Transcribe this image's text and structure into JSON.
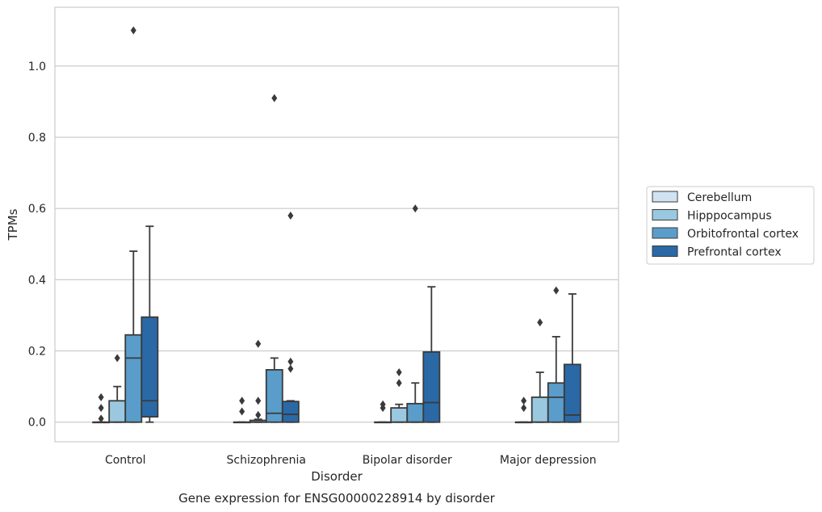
{
  "chart_data": {
    "type": "box",
    "title": "",
    "caption": "Gene expression for ENSG00000228914 by disorder",
    "xlabel": "Disorder",
    "ylabel": "TPMs",
    "ylim": [
      -0.055,
      1.165
    ],
    "yticks": [
      0.0,
      0.2,
      0.4,
      0.6,
      0.8,
      1.0
    ],
    "ytick_labels": [
      "0.0",
      "0.2",
      "0.4",
      "0.6",
      "0.8",
      "1.0"
    ],
    "grid": "horizontal",
    "legend_position": "right",
    "categories": [
      "Control",
      "Schizophrenia",
      "Bipolar disorder",
      "Major depression"
    ],
    "series": [
      {
        "name": "Cerebellum",
        "color": "#d1e2f2",
        "boxes": [
          {
            "q1": 0,
            "median": 0,
            "q3": 0,
            "whisker_low": 0,
            "whisker_high": 0,
            "outliers": [
              0.07,
              0.04,
              0.01
            ]
          },
          {
            "q1": 0,
            "median": 0,
            "q3": 0,
            "whisker_low": 0,
            "whisker_high": 0,
            "outliers": [
              0.06,
              0.03
            ]
          },
          {
            "q1": 0,
            "median": 0,
            "q3": 0,
            "whisker_low": 0,
            "whisker_high": 0,
            "outliers": [
              0.05,
              0.04
            ]
          },
          {
            "q1": 0,
            "median": 0,
            "q3": 0,
            "whisker_low": 0,
            "whisker_high": 0,
            "outliers": [
              0.06,
              0.04
            ]
          }
        ]
      },
      {
        "name": "Hipppocampus",
        "color": "#9ac8e0",
        "boxes": [
          {
            "q1": 0,
            "median": 0,
            "q3": 0.06,
            "whisker_low": 0,
            "whisker_high": 0.1,
            "outliers": [
              0.18
            ]
          },
          {
            "q1": 0,
            "median": 0,
            "q3": 0.005,
            "whisker_low": 0,
            "whisker_high": 0.008,
            "outliers": [
              0.06,
              0.02,
              0.22
            ]
          },
          {
            "q1": 0,
            "median": 0,
            "q3": 0.04,
            "whisker_low": 0,
            "whisker_high": 0.05,
            "outliers": [
              0.14,
              0.11
            ]
          },
          {
            "q1": 0,
            "median": 0,
            "q3": 0.07,
            "whisker_low": 0,
            "whisker_high": 0.14,
            "outliers": [
              0.28
            ]
          }
        ]
      },
      {
        "name": "Orbitofrontal cortex",
        "color": "#5a9dca",
        "boxes": [
          {
            "q1": 0,
            "median": 0.18,
            "q3": 0.245,
            "whisker_low": 0,
            "whisker_high": 0.48,
            "outliers": [
              1.1
            ]
          },
          {
            "q1": 0,
            "median": 0.025,
            "q3": 0.147,
            "whisker_low": 0,
            "whisker_high": 0.18,
            "outliers": [
              0.91
            ]
          },
          {
            "q1": 0,
            "median": 0,
            "q3": 0.052,
            "whisker_low": 0,
            "whisker_high": 0.11,
            "outliers": [
              0.6
            ]
          },
          {
            "q1": 0,
            "median": 0.07,
            "q3": 0.11,
            "whisker_low": 0,
            "whisker_high": 0.24,
            "outliers": [
              0.37
            ]
          }
        ]
      },
      {
        "name": "Prefrontal cortex",
        "color": "#2a69a6",
        "boxes": [
          {
            "q1": 0.015,
            "median": 0.06,
            "q3": 0.295,
            "whisker_low": 0,
            "whisker_high": 0.55,
            "outliers": []
          },
          {
            "q1": 0,
            "median": 0.022,
            "q3": 0.058,
            "whisker_low": 0,
            "whisker_high": 0.06,
            "outliers": [
              0.17,
              0.15,
              0.58
            ]
          },
          {
            "q1": 0,
            "median": 0.055,
            "q3": 0.197,
            "whisker_low": 0,
            "whisker_high": 0.38,
            "outliers": []
          },
          {
            "q1": 0,
            "median": 0.02,
            "q3": 0.162,
            "whisker_low": 0,
            "whisker_high": 0.36,
            "outliers": []
          }
        ]
      }
    ]
  }
}
